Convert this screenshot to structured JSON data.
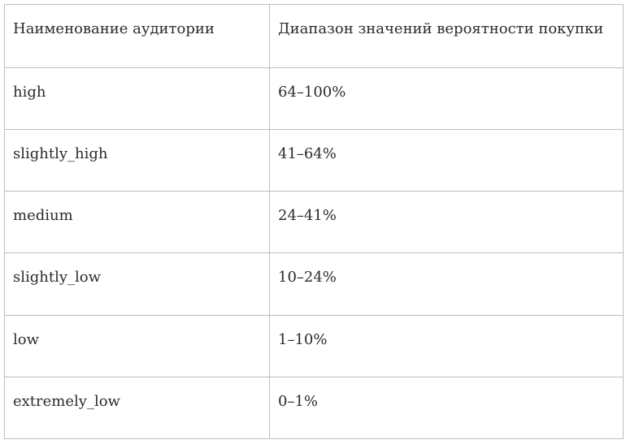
{
  "table": {
    "headers": [
      "Наименование аудитории",
      "Диапазон значений вероятности покупки"
    ],
    "rows": [
      [
        "high",
        "64–100%"
      ],
      [
        "slightly_high",
        "41–64%"
      ],
      [
        "medium",
        "24–41%"
      ],
      [
        "slightly_low",
        "10–24%"
      ],
      [
        "low",
        "1–10%"
      ],
      [
        "extremely_low",
        "0–1%"
      ]
    ]
  }
}
